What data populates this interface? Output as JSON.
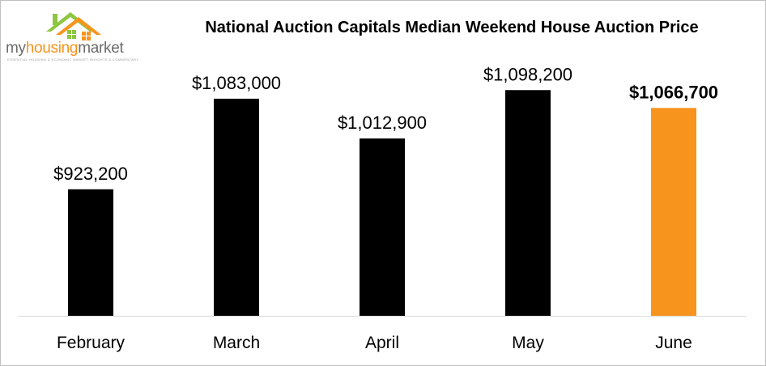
{
  "logo": {
    "text_part1": "my",
    "text_part2": "housing",
    "text_part3": "market",
    "tagline": "ESSENTIAL HOUSING & ECONOMIC MARKET INSIGHTS & COMMENTARY",
    "colors": {
      "orange": "#f7941d",
      "green": "#8dc63f",
      "grey": "#6b6b6b"
    }
  },
  "chart_data": {
    "type": "bar",
    "title": "National Auction Capitals Median Weekend House Auction Price",
    "xlabel": "",
    "ylabel": "",
    "categories": [
      "February",
      "March",
      "April",
      "May",
      "June"
    ],
    "values": [
      923200,
      1083000,
      1012900,
      1098200,
      1066700
    ],
    "value_labels": [
      "$923,200",
      "$1,083,000",
      "$1,012,900",
      "$1,098,200",
      "$1,066,700"
    ],
    "highlight_index": 4,
    "colors": {
      "bar": "#000000",
      "highlight": "#f7941d",
      "axis": "#d9d9d9"
    },
    "ylim": [
      700000,
      1200000
    ],
    "grid": false,
    "legend": "none"
  }
}
